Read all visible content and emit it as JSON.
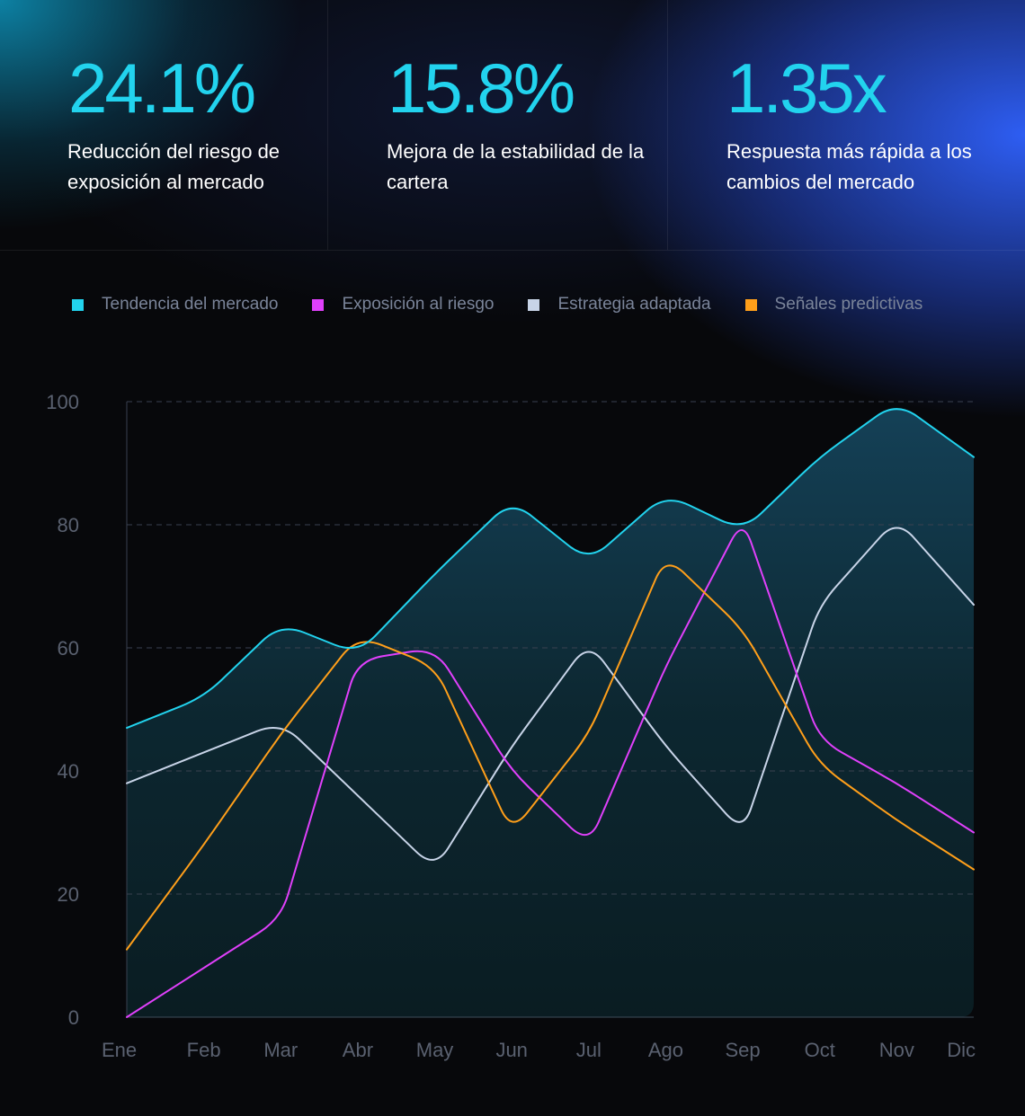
{
  "stats": [
    {
      "value": "24.1%",
      "label": "Reducción del riesgo de exposición al mercado"
    },
    {
      "value": "15.8%",
      "label": "Mejora de la estabilidad de la cartera"
    },
    {
      "value": "1.35x",
      "label": "Respuesta más rápida a los cambios del mercado"
    }
  ],
  "colors": {
    "accent": "#22d3ee",
    "market": "#22d3ee",
    "risk": "#e040fb",
    "strategy": "#c8d4e8",
    "signals": "#ff9f1a"
  },
  "chart_data": {
    "type": "line",
    "categories": [
      "Ene",
      "Feb",
      "Mar",
      "Abr",
      "May",
      "Jun",
      "Jul",
      "Ago",
      "Sep",
      "Oct",
      "Nov",
      "Dic"
    ],
    "ylim": [
      0,
      100
    ],
    "yticks": [
      "0",
      "20",
      "40",
      "60",
      "80",
      "100"
    ],
    "grid": true,
    "legend_position": "top",
    "series": [
      {
        "name": "Tendencia del mercado",
        "color": "#22d3ee",
        "area": true,
        "values": [
          47,
          52,
          64,
          59,
          72,
          84,
          74,
          85,
          79,
          91,
          100,
          91
        ]
      },
      {
        "name": "Exposición al riesgo",
        "color": "#e040fb",
        "values": [
          0,
          8,
          16,
          58,
          60,
          40,
          28,
          57,
          81,
          45,
          38,
          30
        ]
      },
      {
        "name": "Estrategia adaptada",
        "color": "#c8d4e8",
        "values": [
          38,
          43,
          48,
          36,
          24,
          44,
          61,
          44,
          30,
          67,
          81,
          67
        ]
      },
      {
        "name": "Señales predictivas",
        "color": "#ff9f1a",
        "values": [
          11,
          28,
          46,
          62,
          57,
          30,
          46,
          75,
          63,
          41,
          32,
          24
        ]
      }
    ]
  }
}
